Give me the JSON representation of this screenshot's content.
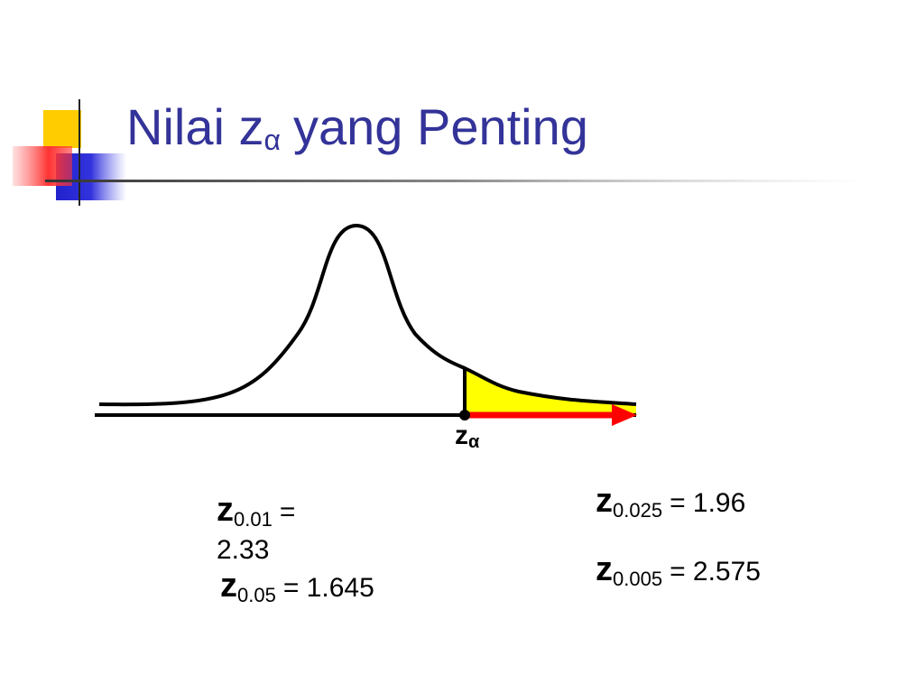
{
  "title": {
    "main": "Nilai z",
    "subscript": "α",
    "rest": "yang Penting"
  },
  "diagram": {
    "label": {
      "main": "z",
      "subscript": "α"
    }
  },
  "formulas": [
    {
      "symbol": "z",
      "subscript": "0.01",
      "text": "= 2.33"
    },
    {
      "symbol": "z",
      "subscript": "0.05",
      "text": "= 1.645"
    },
    {
      "symbol": "z",
      "subscript": "0.025",
      "text": "= 1.96"
    },
    {
      "symbol": "z",
      "subscript": "0.005",
      "text": "= 2.575"
    }
  ]
}
